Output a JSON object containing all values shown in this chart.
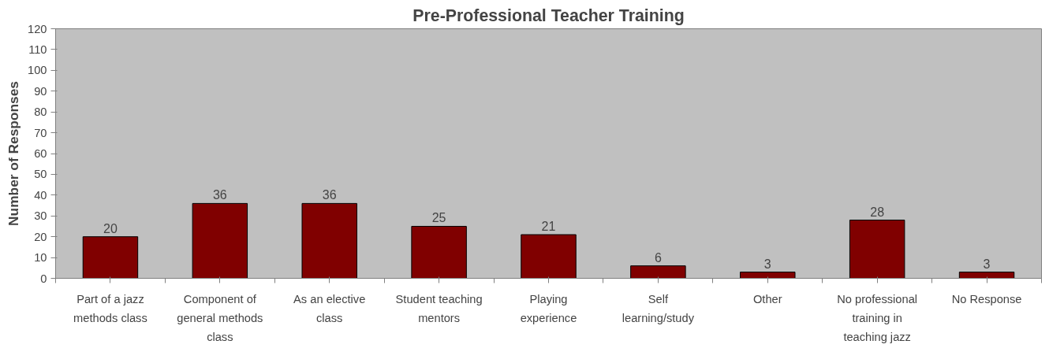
{
  "chart_data": {
    "type": "bar",
    "title": "Pre-Professional Teacher Training",
    "ylabel": "Number of Responses",
    "categories": [
      "Part of a jazz methods class",
      "Component of general methods class",
      "As an elective class",
      "Student teaching mentors",
      "Playing experience",
      "Self learning/study",
      "Other",
      "No professional training in teaching jazz",
      "No Response"
    ],
    "values": [
      20,
      36,
      36,
      25,
      21,
      6,
      3,
      28,
      3
    ],
    "color": "#800000",
    "ylim": [
      0,
      120
    ],
    "yticks": [
      0,
      10,
      20,
      30,
      40,
      50,
      60,
      70,
      80,
      90,
      100,
      110,
      120
    ],
    "grid": false,
    "data_labels": true
  }
}
